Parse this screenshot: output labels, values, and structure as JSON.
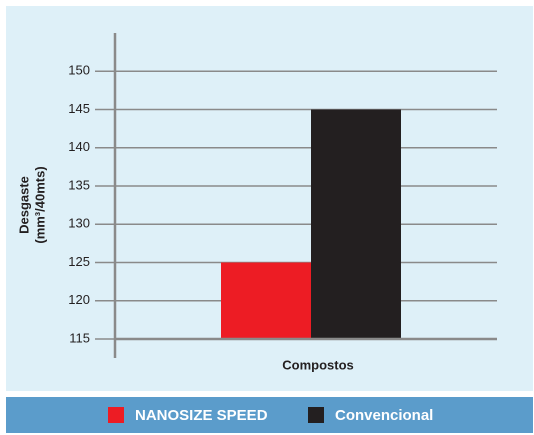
{
  "chart_data": {
    "type": "bar",
    "categories": [
      null
    ],
    "series": [
      {
        "name": "NANOSIZE SPEED",
        "color": "#ed1c24",
        "values": [
          125
        ]
      },
      {
        "name": "Convencional",
        "color": "#231f20",
        "values": [
          145
        ]
      }
    ],
    "xlabel": "Compostos",
    "ylabel": [
      "Desgaste",
      "(mm³/40mts)"
    ],
    "ylim": [
      115,
      155
    ],
    "yticks": [
      115,
      120,
      125,
      130,
      135,
      140,
      145,
      150
    ],
    "grid": true,
    "legend": "bottom"
  }
}
